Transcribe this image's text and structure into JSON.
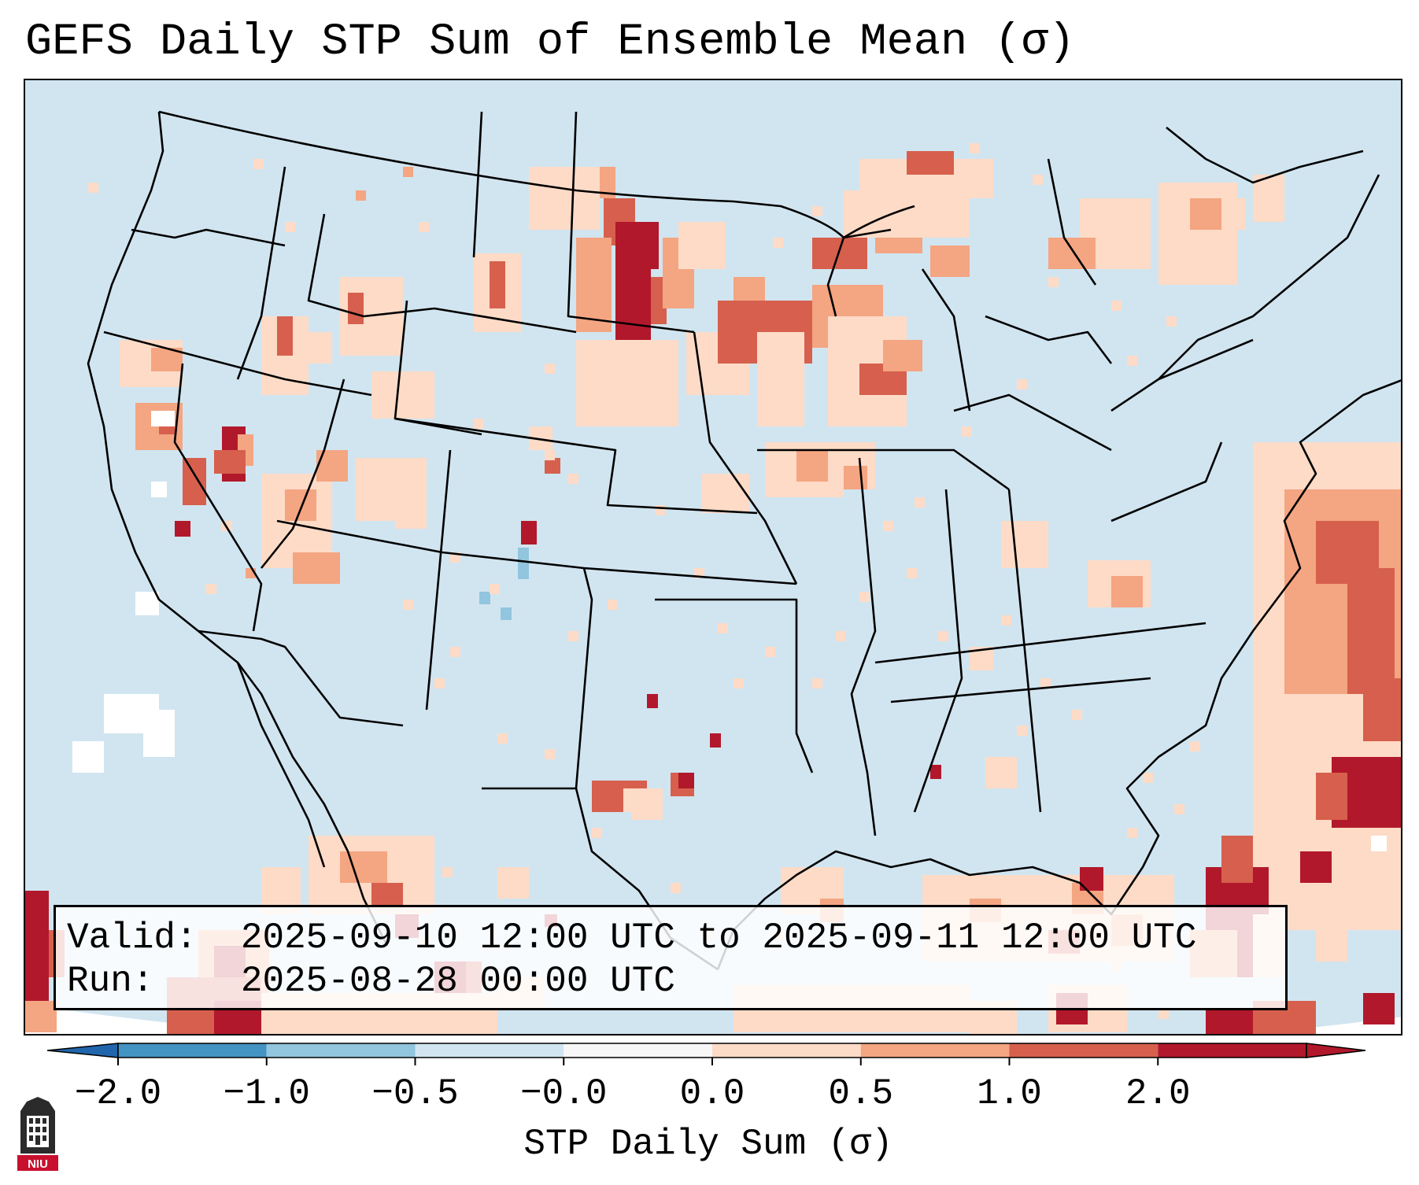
{
  "title": "GEFS Daily STP Sum of Ensemble Mean (σ)",
  "info": {
    "valid_label": "Valid:",
    "valid_value": "2025-09-10 12:00 UTC to 2025-09-11 12:00 UTC",
    "run_label": "Run:",
    "run_value": "2025-08-28 00:00 UTC"
  },
  "colorbar": {
    "label": "STP Daily Sum (σ)",
    "ticks": [
      "−2.0",
      "−1.0",
      "−0.5",
      "−0.0",
      "0.0",
      "0.5",
      "1.0",
      "2.0"
    ],
    "colors": [
      "#4393c3",
      "#92c5de",
      "#d1e5f0",
      "#f7f7f7",
      "#fddbc7",
      "#f4a582",
      "#d6604d",
      "#b2182b"
    ],
    "extend_low_color": "#2166ac",
    "extend_high_color": "#b2182b"
  },
  "map": {
    "background_color": "#d1e5f0",
    "ocean_outside_color": "#ffffff",
    "border_color": "#000000",
    "level_colors": {
      "light_orange": "#fddbc7",
      "orange": "#f4a582",
      "red": "#d6604d",
      "dark_red": "#b2182b",
      "light_blue": "#92c5de",
      "white": "#ffffff"
    }
  },
  "logo": {
    "text": "NIU",
    "color": "#c8102e"
  }
}
